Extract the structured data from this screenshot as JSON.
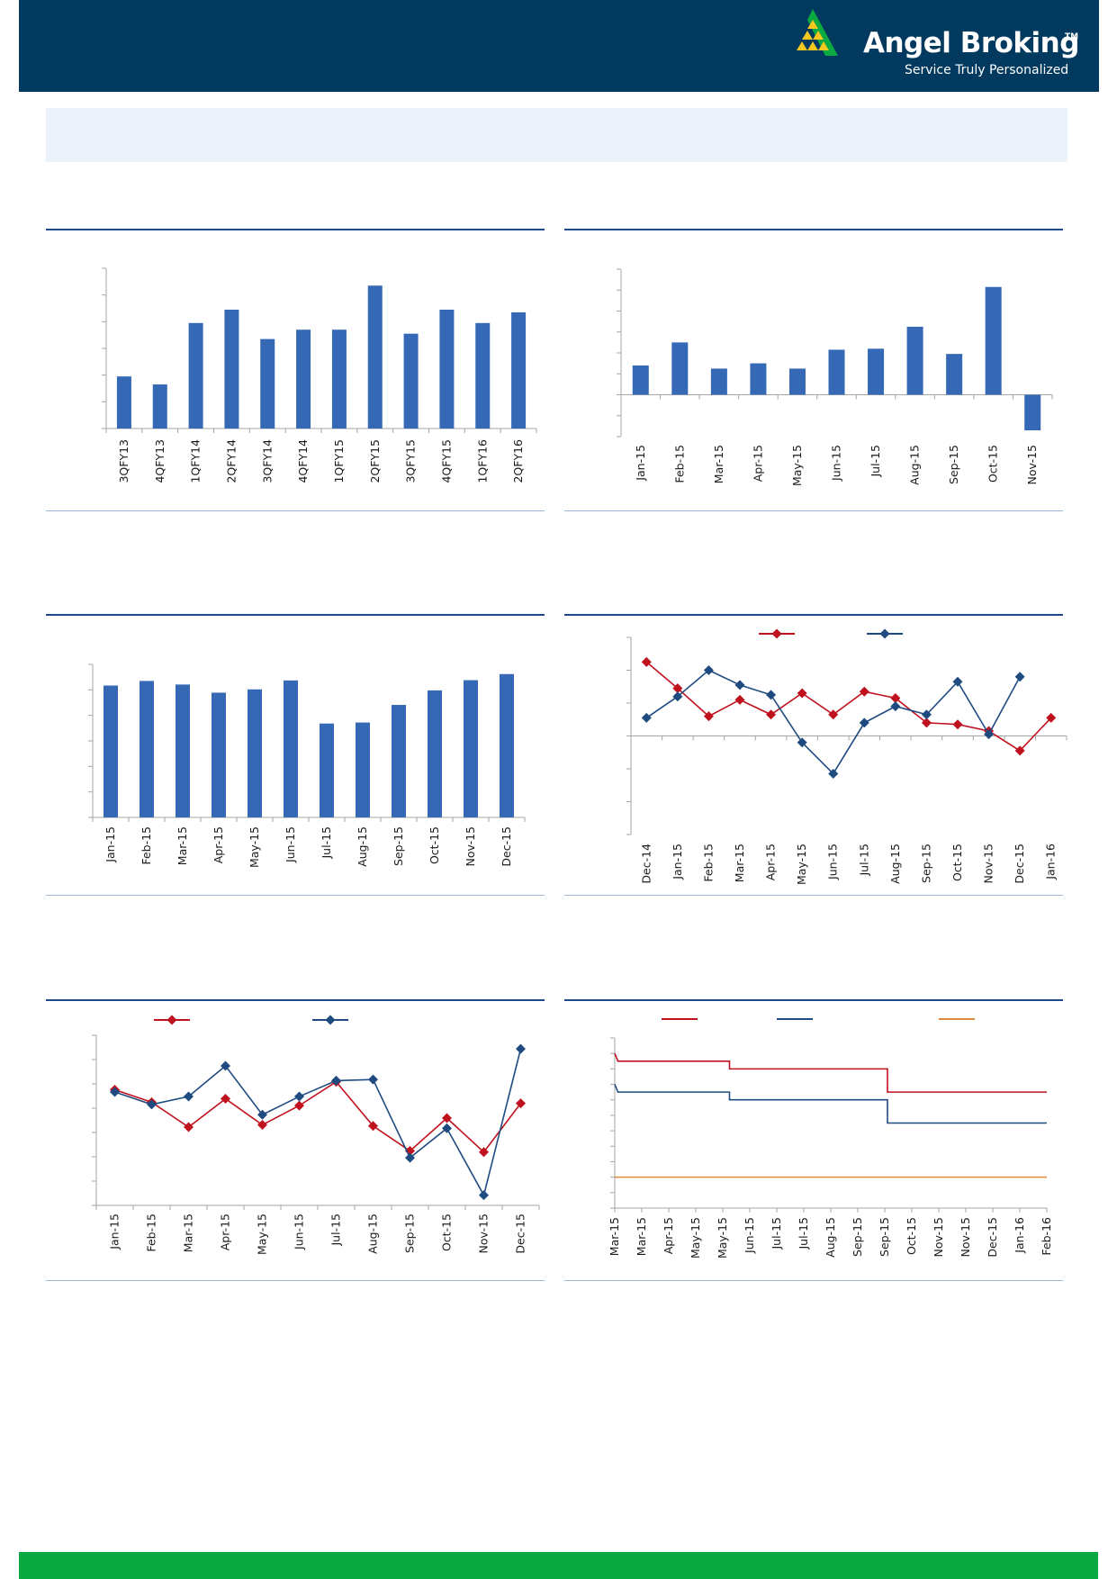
{
  "header": {
    "brand_name": "Angel Broking",
    "brand_trademark": "TM",
    "brand_tagline": "Service Truly Personalized",
    "colors": {
      "background": "#01395f",
      "logo_green": "#0aa942",
      "logo_yellow": "#f4c81e"
    }
  },
  "footer": {
    "color": "#0aa942"
  },
  "chart_data": [
    {
      "type": "bar",
      "categories": [
        "3QFY13",
        "4QFY13",
        "1QFY14",
        "2QFY14",
        "3QFY14",
        "4QFY14",
        "1QFY15",
        "2QFY15",
        "3QFY15",
        "4QFY15",
        "1QFY16",
        "2QFY16"
      ],
      "values": [
        3.9,
        3.3,
        7.9,
        8.9,
        6.7,
        7.4,
        7.4,
        10.7,
        7.1,
        8.9,
        7.9,
        8.7
      ],
      "ylim": [
        0,
        12
      ],
      "color": "#3568b5",
      "grid": false
    },
    {
      "type": "bar",
      "categories": [
        "Jan-15",
        "Feb-15",
        "Mar-15",
        "Apr-15",
        "May-15",
        "Jun-15",
        "Jul-15",
        "Aug-15",
        "Sep-15",
        "Oct-15",
        "Nov-15"
      ],
      "values": [
        2.8,
        5.0,
        2.5,
        3.0,
        2.5,
        4.3,
        4.4,
        6.5,
        3.9,
        10.3,
        -3.4
      ],
      "ylim": [
        -4,
        12
      ],
      "color": "#3568b5",
      "grid": false
    },
    {
      "type": "bar",
      "categories": [
        "Jan-15",
        "Feb-15",
        "Mar-15",
        "Apr-15",
        "May-15",
        "Jun-15",
        "Jul-15",
        "Aug-15",
        "Sep-15",
        "Oct-15",
        "Nov-15",
        "Dec-15"
      ],
      "values": [
        51.7,
        53.5,
        52.1,
        48.9,
        50.2,
        53.7,
        36.8,
        37.2,
        44.1,
        49.8,
        53.8,
        56.2
      ],
      "ylim": [
        0,
        60
      ],
      "color": "#3568b5",
      "grid": false
    },
    {
      "type": "line",
      "categories": [
        "Dec-14",
        "Jan-15",
        "Feb-15",
        "Mar-15",
        "Apr-15",
        "May-15",
        "Jun-15",
        "Jul-15",
        "Aug-15",
        "Sep-15",
        "Oct-15",
        "Nov-15",
        "Dec-15",
        "Jan-16"
      ],
      "series": [
        {
          "color": "#c0121e",
          "values": [
            22.5,
            14.5,
            6.0,
            11.0,
            6.5,
            13.0,
            6.5,
            13.5,
            11.5,
            4.0,
            3.5,
            1.5,
            -4.5,
            5.5
          ]
        },
        {
          "color": "#1f4b80",
          "values": [
            5.5,
            12.0,
            20.0,
            15.5,
            12.5,
            -2.0,
            -11.5,
            4.0,
            9.0,
            6.5,
            16.5,
            0.5,
            18.0,
            null
          ]
        }
      ],
      "ylim": [
        -30,
        30
      ],
      "legend": "top",
      "grid": false
    },
    {
      "type": "line",
      "categories": [
        "Jan-15",
        "Feb-15",
        "Mar-15",
        "Apr-15",
        "May-15",
        "Jun-15",
        "Jul-15",
        "Aug-15",
        "Sep-15",
        "Oct-15",
        "Nov-15",
        "Dec-15"
      ],
      "series": [
        {
          "color": "#c0121e",
          "values": [
            5.2,
            4.1,
            1.9,
            4.4,
            2.1,
            3.8,
            5.9,
            2.0,
            -0.2,
            2.7,
            -0.3,
            4.0
          ]
        },
        {
          "color": "#1f4b80",
          "values": [
            5.0,
            3.9,
            4.6,
            7.3,
            3.0,
            4.6,
            6.0,
            6.1,
            -0.8,
            1.8,
            -4.1,
            8.8
          ]
        }
      ],
      "ylim": [
        -5,
        10
      ],
      "legend": "top",
      "grid": false
    },
    {
      "type": "line",
      "categories": [
        "Mar-15",
        "Mar-15",
        "Apr-15",
        "May-15",
        "May-15",
        "Jun-15",
        "Jul-15",
        "Jul-15",
        "Aug-15",
        "Sep-15",
        "Sep-15",
        "Oct-15",
        "Nov-15",
        "Nov-15",
        "Dec-15",
        "Jan-16",
        "Feb-16"
      ],
      "series": [
        {
          "color": "#c0121e",
          "step_values": [
            [
              0.0,
              8.0
            ],
            [
              0.12,
              7.75
            ],
            [
              4.25,
              7.75
            ],
            [
              4.25,
              7.5
            ],
            [
              10.1,
              7.5
            ],
            [
              10.1,
              6.75
            ],
            [
              16.0,
              6.75
            ]
          ]
        },
        {
          "color": "#1f4b80",
          "step_values": [
            [
              0.0,
              7.0
            ],
            [
              0.12,
              6.75
            ],
            [
              4.25,
              6.75
            ],
            [
              4.25,
              6.5
            ],
            [
              10.1,
              6.5
            ],
            [
              10.1,
              5.75
            ],
            [
              16.0,
              5.75
            ]
          ]
        },
        {
          "color": "#e08a3c",
          "step_values": [
            [
              0.0,
              4.0
            ],
            [
              16.0,
              4.0
            ]
          ]
        }
      ],
      "ylim": [
        3.0,
        8.5
      ],
      "legend": "top",
      "grid": false
    }
  ]
}
